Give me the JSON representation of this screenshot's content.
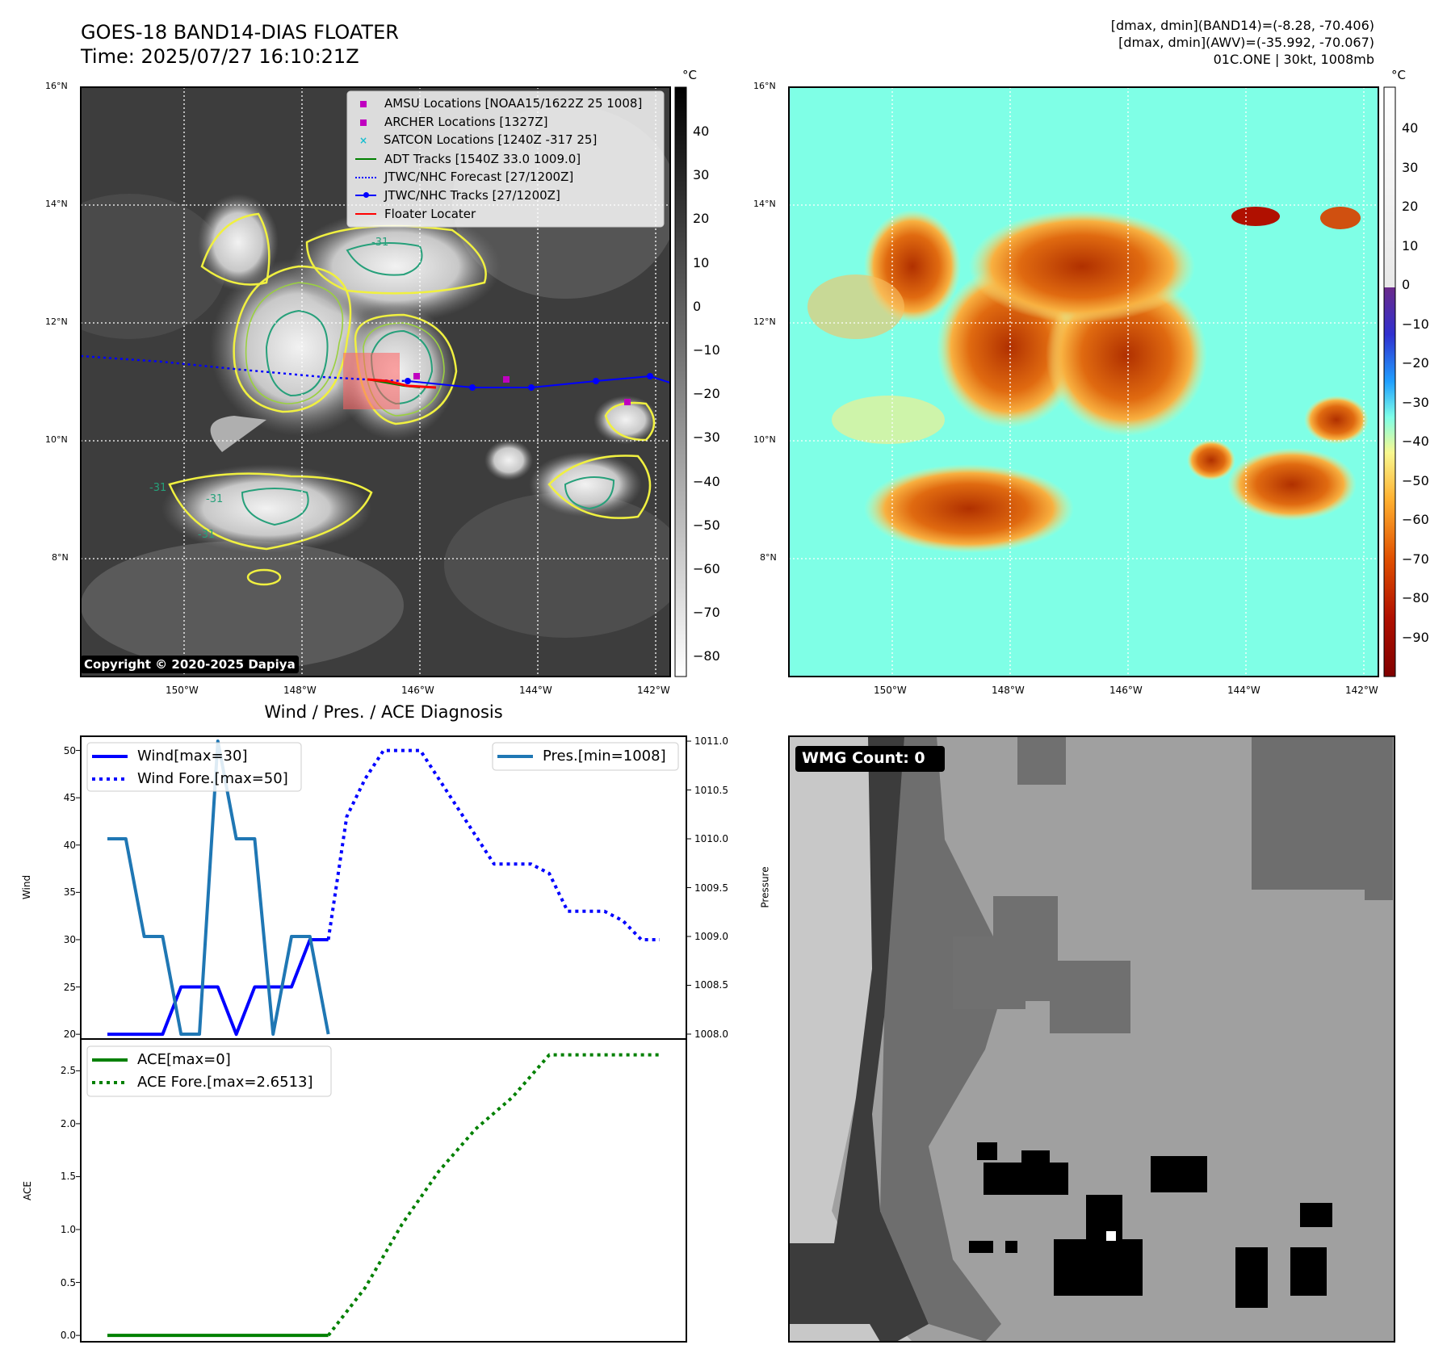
{
  "header": {
    "title": "GOES-18 BAND14-DIAS FLOATER",
    "time": "Time: 2025/07/27 16:10:21Z",
    "stats": [
      "[dmax, dmin](BAND14)=(-8.28, -70.406)",
      "[dmax, dmin](AWV)=(-35.992, -70.067)",
      "01C.ONE | 30kt, 1008mb"
    ]
  },
  "map": {
    "lat_labels": [
      "16°N",
      "14°N",
      "12°N",
      "10°N",
      "8°N"
    ],
    "lon_labels": [
      "150°W",
      "148°W",
      "146°W",
      "144°W",
      "142°W"
    ],
    "colorbar1": {
      "unit": "°C",
      "ticks": [
        "40",
        "30",
        "20",
        "10",
        "0",
        "−10",
        "−20",
        "−30",
        "−40",
        "−50",
        "−60",
        "−70",
        "−80"
      ]
    },
    "colorbar2": {
      "unit": "°C",
      "ticks": [
        "40",
        "30",
        "20",
        "10",
        "0",
        "−10",
        "−20",
        "−30",
        "−40",
        "−50",
        "−60",
        "−70",
        "−80",
        "−90"
      ]
    },
    "copyright": "Copyright © 2020-2025 Dapiya",
    "contour_labels": [
      "-31",
      "-31",
      "-31",
      "-31"
    ],
    "legend": [
      "AMSU Locations [NOAA15/1622Z 25 1008]",
      "ARCHER Locations [1327Z]",
      "SATCON Locations [1240Z -317 25]",
      "ADT Tracks [1540Z 33.0 1009.0]",
      "JTWC/NHC Forecast [27/1200Z]",
      "JTWC/NHC Tracks [27/1200Z]",
      "Floater Locater"
    ],
    "colors": {
      "amsu": "#c000c0",
      "archer": "#c000c0",
      "satcon": "#17becf",
      "adt": "#008000",
      "forecast": "#0000ff",
      "track": "#0000ff",
      "floater": "#ff0000"
    }
  },
  "diag": {
    "title": "Wind / Pres. / ACE Diagnosis",
    "wind_ylabel": "Wind",
    "pres_ylabel": "Pressure",
    "ace_ylabel": "ACE",
    "wind_legend": [
      "Wind[max=30]",
      "Wind Fore.[max=50]"
    ],
    "pres_legend": [
      "Pres.[min=1008]"
    ],
    "ace_legend": [
      "ACE[max=0]",
      "ACE Fore.[max=2.6513]"
    ]
  },
  "wmg": {
    "label": "WMG Count: 0"
  },
  "chart_data": [
    {
      "type": "line",
      "title": "Wind / Pres. / ACE Diagnosis",
      "ylabel": "Wind",
      "ylim": [
        19.5,
        51.5
      ],
      "yticks": [
        20,
        25,
        30,
        35,
        40,
        45,
        50
      ],
      "x": [
        0,
        1,
        2,
        3,
        4,
        5,
        6,
        7,
        8,
        9,
        10,
        11,
        12,
        13,
        14,
        15,
        16,
        17,
        18,
        19,
        20,
        21,
        22,
        23,
        24,
        25,
        26,
        27,
        28,
        29,
        30
      ],
      "series": [
        {
          "name": "Wind[max=30]",
          "x": [
            0,
            1,
            2,
            3,
            4,
            5,
            6,
            7,
            8,
            9,
            10,
            11,
            12
          ],
          "values": [
            20,
            20,
            20,
            20,
            25,
            25,
            25,
            20,
            25,
            25,
            25,
            30,
            30
          ]
        },
        {
          "name": "Wind Fore.[max=50]",
          "x": [
            12,
            13,
            14,
            15,
            16,
            17,
            18,
            19,
            20,
            21,
            22,
            23,
            24,
            25,
            26,
            27,
            28,
            29,
            30
          ],
          "values": [
            30,
            43,
            47,
            50,
            50,
            50,
            47,
            44,
            41,
            38,
            38,
            38,
            37,
            33,
            33,
            33,
            32,
            30,
            30
          ]
        }
      ]
    },
    {
      "type": "line",
      "ylabel": "Pressure",
      "ylim": [
        1007.95,
        1011.05
      ],
      "yticks": [
        1008.0,
        1008.5,
        1009.0,
        1009.5,
        1010.0,
        1010.5,
        1011.0
      ],
      "series": [
        {
          "name": "Pres.[min=1008]",
          "x": [
            0,
            1,
            2,
            3,
            4,
            5,
            6,
            7,
            8,
            9,
            10,
            11,
            12
          ],
          "values": [
            1010,
            1010,
            1009,
            1009,
            1008,
            1008,
            1011,
            1010,
            1010,
            1008,
            1009,
            1009,
            1008
          ]
        }
      ]
    },
    {
      "type": "line",
      "ylabel": "ACE",
      "ylim": [
        -0.06,
        2.8
      ],
      "yticks": [
        0.0,
        0.5,
        1.0,
        1.5,
        2.0,
        2.5
      ],
      "series": [
        {
          "name": "ACE[max=0]",
          "x": [
            0,
            12
          ],
          "values": [
            0,
            0
          ]
        },
        {
          "name": "ACE Fore.[max=2.6513]",
          "x": [
            12,
            14,
            16,
            18,
            20,
            22,
            24,
            26,
            28,
            30
          ],
          "values": [
            0,
            0.45,
            1.05,
            1.55,
            1.95,
            2.25,
            2.65,
            2.65,
            2.65,
            2.65
          ]
        }
      ]
    }
  ]
}
